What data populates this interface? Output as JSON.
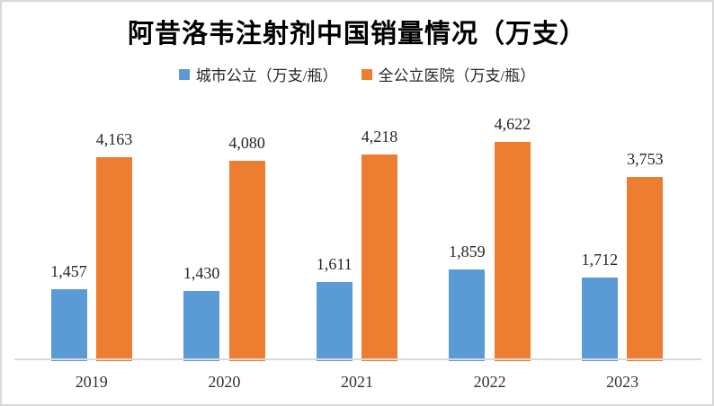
{
  "chart_data": {
    "type": "bar",
    "title": "阿昔洛韦注射剂中国销量情况（万支）",
    "categories": [
      "2019",
      "2020",
      "2021",
      "2022",
      "2023"
    ],
    "series": [
      {
        "name": "城市公立（万支/瓶）",
        "key": "city-public",
        "color": "#5B9BD5",
        "values": [
          1457,
          1430,
          1611,
          1859,
          1712
        ],
        "labels": [
          "1,457",
          "1,430",
          "1,611",
          "1,859",
          "1,712"
        ]
      },
      {
        "name": "全公立医院（万支/瓶）",
        "key": "all-public-hospitals",
        "color": "#ED7D31",
        "values": [
          4163,
          4080,
          4218,
          4622,
          3753
        ],
        "labels": [
          "4,163",
          "4,080",
          "4,218",
          "4,622",
          "3,753"
        ]
      }
    ],
    "ylim": [
      0,
      5000
    ],
    "grid": false,
    "legend_position": "top",
    "data_labels": true,
    "axis_color": "#D9D9D9",
    "border_color": "#D9D9D9",
    "background_color": "#FFFFFF"
  }
}
